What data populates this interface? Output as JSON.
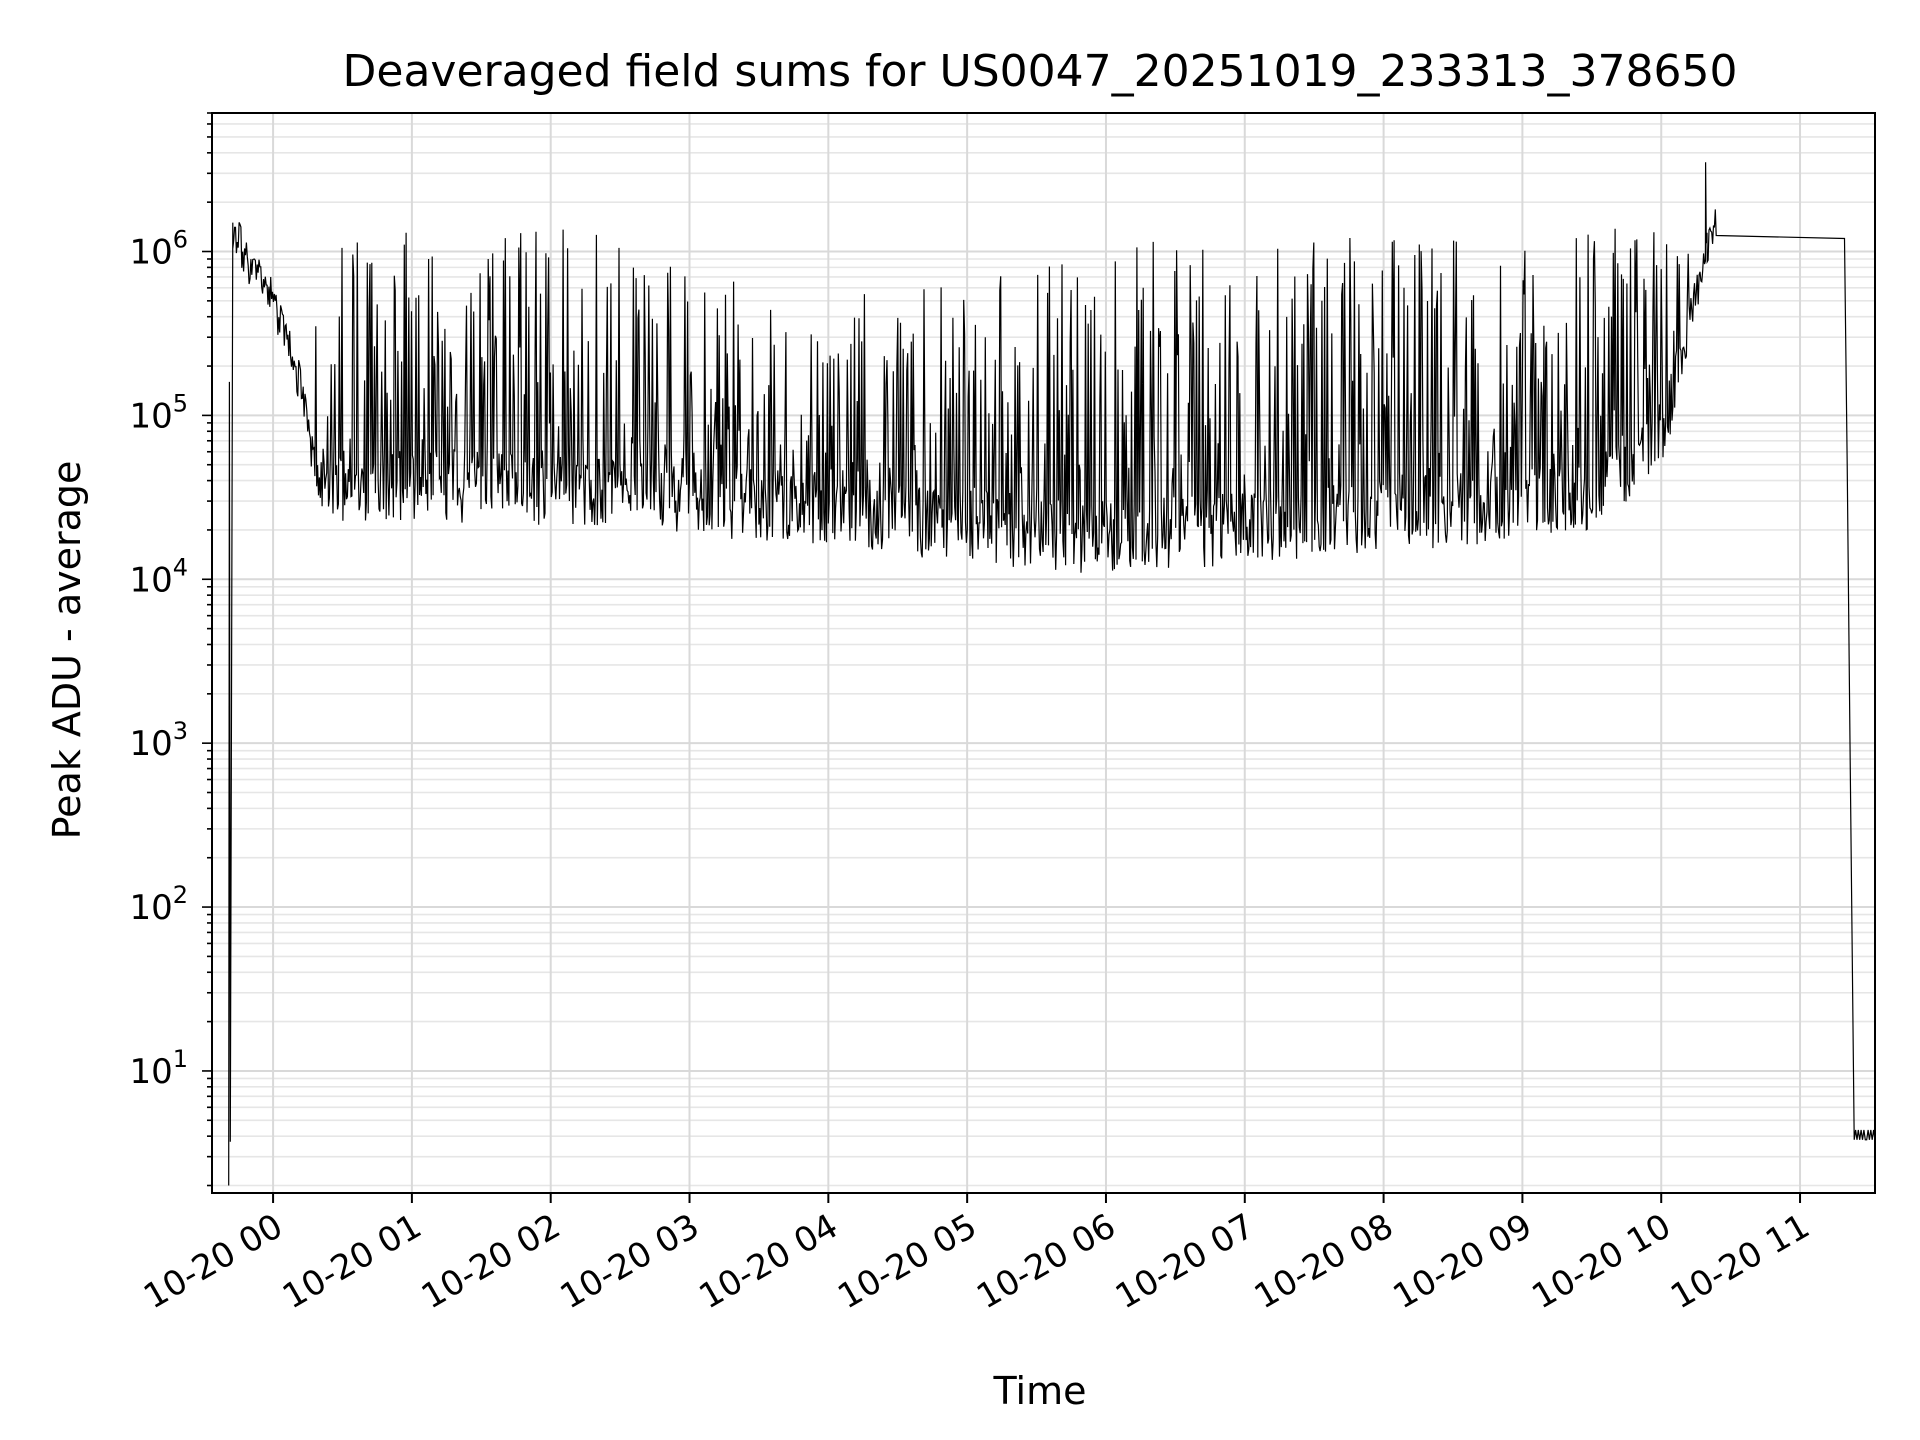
{
  "chart_data": {
    "type": "line",
    "title": "Deaveraged field sums for US0047_20251019_233313_378650",
    "xlabel": "Time",
    "ylabel": "Peak ADU - average",
    "yscale": "log",
    "ylim": [
      1.8,
      7000000
    ],
    "xlim_hours": [
      -0.44,
      11.54
    ],
    "grid": true,
    "line_color": "#000000",
    "x_ticks": [
      {
        "hour": 0,
        "label": "10-20 00"
      },
      {
        "hour": 1,
        "label": "10-20 01"
      },
      {
        "hour": 2,
        "label": "10-20 02"
      },
      {
        "hour": 3,
        "label": "10-20 03"
      },
      {
        "hour": 4,
        "label": "10-20 04"
      },
      {
        "hour": 5,
        "label": "10-20 05"
      },
      {
        "hour": 6,
        "label": "10-20 06"
      },
      {
        "hour": 7,
        "label": "10-20 07"
      },
      {
        "hour": 8,
        "label": "10-20 08"
      },
      {
        "hour": 9,
        "label": "10-20 09"
      },
      {
        "hour": 10,
        "label": "10-20 10"
      },
      {
        "hour": 11,
        "label": "10-20 11"
      }
    ],
    "y_ticks": [
      {
        "exp": 1,
        "base": "10",
        "sup": "1"
      },
      {
        "exp": 2,
        "base": "10",
        "sup": "2"
      },
      {
        "exp": 3,
        "base": "10",
        "sup": "3"
      },
      {
        "exp": 4,
        "base": "10",
        "sup": "4"
      },
      {
        "exp": 5,
        "base": "10",
        "sup": "5"
      },
      {
        "exp": 6,
        "base": "10",
        "sup": "6"
      }
    ],
    "series": [
      {
        "name": "Peak ADU - average",
        "envelope": {
          "hours": [
            -0.31,
            -0.25,
            -0.2,
            0.0,
            0.2,
            0.3,
            0.5,
            1.0,
            1.5,
            2.0,
            2.5,
            3.0,
            3.5,
            4.0,
            4.5,
            5.0,
            5.5,
            6.0,
            6.5,
            7.0,
            7.5,
            8.0,
            8.5,
            9.0,
            9.5,
            10.0,
            10.2,
            10.4
          ],
          "baseline": [
            1500000,
            1200000,
            900000,
            500000,
            150000,
            45000,
            40000,
            40000,
            38000,
            36000,
            35000,
            33000,
            30000,
            28000,
            25000,
            22000,
            20000,
            19000,
            20000,
            22000,
            24000,
            26000,
            28000,
            30000,
            35000,
            80000,
            400000,
            1500000
          ],
          "spike_peak": [
            1500000,
            1400000,
            1300000,
            1000000,
            700000,
            600000,
            1400000,
            1400000,
            1400000,
            1400000,
            1200000,
            800000,
            600000,
            500000,
            600000,
            700000,
            900000,
            1200000,
            1300000,
            1300000,
            1300000,
            1300000,
            1400000,
            1400000,
            1400000,
            1500000,
            1600000,
            1700000
          ]
        },
        "ramp_up": {
          "start_hour": -0.32,
          "start_value": 3.7,
          "end_hour": -0.29,
          "end_value": 1500000
        },
        "max_spike": {
          "hour": 10.32,
          "value": 3500000
        },
        "tail": {
          "drop_hour": 11.34,
          "floor_value": 3.8
        }
      }
    ]
  }
}
